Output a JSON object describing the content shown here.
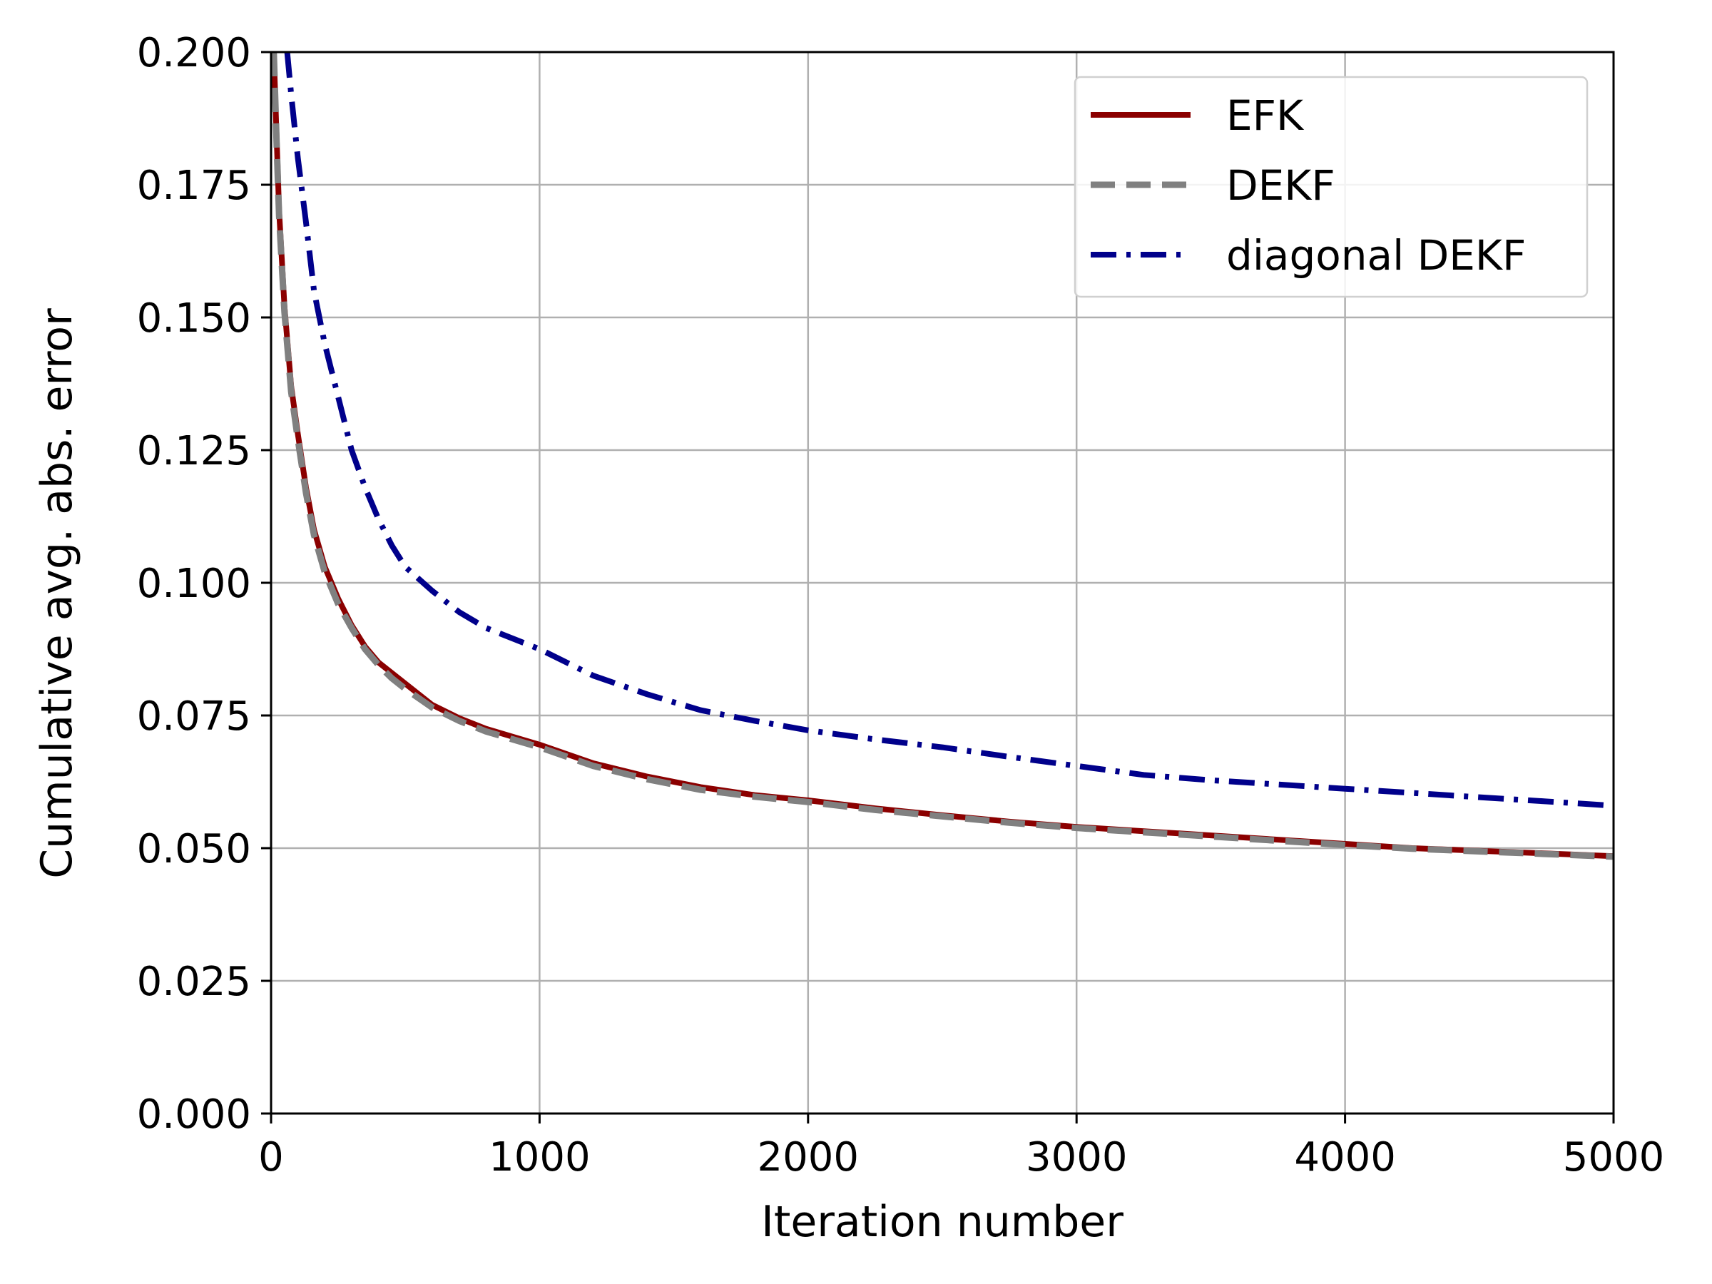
{
  "chart_data": {
    "type": "line",
    "title": "",
    "xlabel": "Iteration number",
    "ylabel": "Cumulative avg. abs. error",
    "xlim": [
      0,
      5000
    ],
    "ylim": [
      0,
      0.2
    ],
    "xticks": [
      "0",
      "1000",
      "2000",
      "3000",
      "4000",
      "5000"
    ],
    "yticks": [
      "0.000",
      "0.025",
      "0.050",
      "0.075",
      "0.100",
      "0.125",
      "0.150",
      "0.175",
      "0.200"
    ],
    "grid": true,
    "legend_position": "top-right",
    "series": [
      {
        "name": "EFK",
        "color": "#8b0000",
        "style": "solid",
        "x": [
          10,
          20,
          30,
          50,
          75,
          100,
          130,
          160,
          200,
          250,
          300,
          350,
          400,
          450,
          500,
          600,
          700,
          800,
          900,
          1000,
          1200,
          1400,
          1600,
          1800,
          2000,
          2250,
          2500,
          2750,
          3000,
          3250,
          3500,
          3750,
          4000,
          4250,
          4500,
          4750,
          5000
        ],
        "y": [
          0.2,
          0.185,
          0.17,
          0.152,
          0.137,
          0.128,
          0.118,
          0.11,
          0.103,
          0.097,
          0.092,
          0.088,
          0.085,
          0.083,
          0.081,
          0.077,
          0.0745,
          0.0725,
          0.071,
          0.0695,
          0.066,
          0.0635,
          0.0615,
          0.06,
          0.059,
          0.0575,
          0.0562,
          0.055,
          0.054,
          0.0532,
          0.0524,
          0.0516,
          0.0508,
          0.05,
          0.0495,
          0.049,
          0.0485
        ]
      },
      {
        "name": "DEKF",
        "color": "#808080",
        "style": "dashed",
        "x": [
          10,
          20,
          30,
          50,
          75,
          100,
          130,
          160,
          200,
          250,
          300,
          350,
          400,
          450,
          500,
          600,
          700,
          800,
          900,
          1000,
          1200,
          1400,
          1600,
          1800,
          2000,
          2250,
          2500,
          2750,
          3000,
          3250,
          3500,
          3750,
          4000,
          4250,
          4500,
          4750,
          5000
        ],
        "y": [
          0.2,
          0.184,
          0.169,
          0.151,
          0.136,
          0.127,
          0.117,
          0.109,
          0.102,
          0.096,
          0.0915,
          0.0875,
          0.0845,
          0.082,
          0.08,
          0.0765,
          0.074,
          0.072,
          0.0705,
          0.069,
          0.0655,
          0.063,
          0.061,
          0.0597,
          0.0587,
          0.0572,
          0.056,
          0.0548,
          0.0538,
          0.053,
          0.0522,
          0.0514,
          0.0506,
          0.0499,
          0.0494,
          0.0489,
          0.0484
        ]
      },
      {
        "name": "diagonal DEKF",
        "color": "#00008b",
        "style": "dashdot",
        "x": [
          60,
          75,
          100,
          130,
          160,
          200,
          250,
          300,
          350,
          400,
          450,
          500,
          600,
          700,
          800,
          900,
          1000,
          1200,
          1400,
          1600,
          1800,
          2000,
          2250,
          2500,
          2750,
          3000,
          3250,
          3500,
          3750,
          4000,
          4250,
          4500,
          4750,
          5000
        ],
        "y": [
          0.2,
          0.192,
          0.18,
          0.168,
          0.155,
          0.145,
          0.135,
          0.125,
          0.118,
          0.112,
          0.107,
          0.103,
          0.0985,
          0.0945,
          0.0915,
          0.0895,
          0.0875,
          0.0825,
          0.079,
          0.076,
          0.074,
          0.0722,
          0.0705,
          0.069,
          0.0672,
          0.0655,
          0.0638,
          0.0628,
          0.062,
          0.0612,
          0.0604,
          0.0596,
          0.0588,
          0.058
        ]
      }
    ]
  }
}
